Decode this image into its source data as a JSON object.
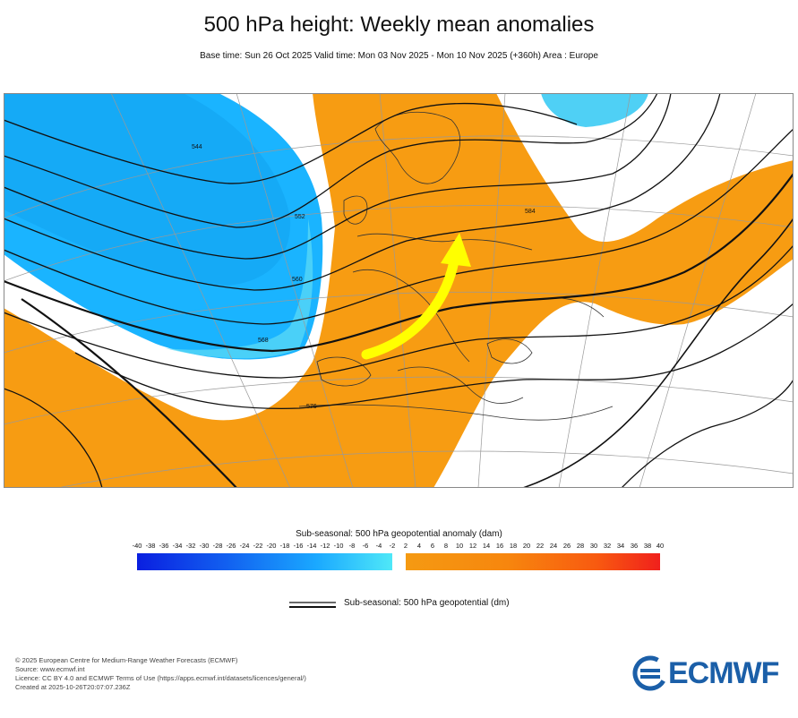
{
  "header": {
    "title": "500 hPa height: Weekly mean anomalies",
    "subtitle": "Base time: Sun 26 Oct 2025 Valid time: Mon 03 Nov 2025 - Mon 10 Nov 2025 (+360h) Area : Europe"
  },
  "map": {
    "contour_labels": [
      "544",
      "552",
      "560",
      "568",
      "576",
      "584"
    ],
    "colors": {
      "negative_anomaly": "#1ab4ff",
      "negative_light": "#5fdcf5",
      "positive_anomaly": "#f79c12",
      "arrow": "#ffff00"
    }
  },
  "legend": {
    "anomaly_title": "Sub-seasonal: 500 hPa geopotential anomaly (dam)",
    "ticks": [
      "-40",
      "-38",
      "-36",
      "-34",
      "-32",
      "-30",
      "-28",
      "-26",
      "-24",
      "-22",
      "-20",
      "-18",
      "-16",
      "-14",
      "-12",
      "-10",
      "-8",
      "-6",
      "-4",
      "-2",
      "2",
      "4",
      "6",
      "8",
      "10",
      "12",
      "14",
      "16",
      "18",
      "20",
      "22",
      "24",
      "26",
      "28",
      "30",
      "32",
      "34",
      "36",
      "38",
      "40"
    ],
    "contour_label": "Sub-seasonal: 500 hPa geopotential (dm)"
  },
  "footer": {
    "lines": [
      "© 2025 European Centre for Medium-Range Weather Forecasts (ECMWF)",
      "Source: www.ecmwf.int",
      "Licence: CC BY 4.0 and ECMWF Terms of Use (https://apps.ecmwf.int/datasets/licences/general/)",
      "Created at 2025-10-26T20:07:07.236Z"
    ],
    "logo_text": "ECMWF"
  }
}
